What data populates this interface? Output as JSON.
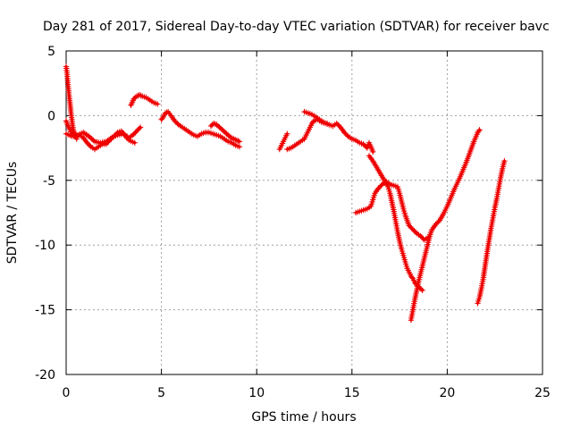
{
  "chart_data": {
    "type": "scatter",
    "title": "Day 281 of 2017, Sidereal Day-to-day VTEC variation (SDTVAR) for receiver bavc",
    "xlabel": "GPS time / hours",
    "ylabel": "SDTVAR / TECUs",
    "xlim": [
      0,
      25
    ],
    "ylim": [
      -20,
      5
    ],
    "xticks": [
      "0",
      "5",
      "10",
      "15",
      "20",
      "25"
    ],
    "yticks": [
      "5",
      "0",
      "-5",
      "-10",
      "-15",
      "-20"
    ],
    "grid": true,
    "color": "#ee0000",
    "marker": "plus",
    "series": [
      {
        "name": "s1",
        "points": [
          [
            0.0,
            3.8
          ],
          [
            0.05,
            3.2
          ],
          [
            0.1,
            2.4
          ],
          [
            0.15,
            1.6
          ],
          [
            0.2,
            1.0
          ],
          [
            0.25,
            0.3
          ],
          [
            0.3,
            -0.3
          ],
          [
            0.35,
            -0.9
          ],
          [
            0.4,
            -1.3
          ],
          [
            0.45,
            -1.6
          ],
          [
            0.5,
            -1.4
          ],
          [
            0.55,
            -1.8
          ]
        ]
      },
      {
        "name": "s2",
        "points": [
          [
            0.0,
            -0.4
          ],
          [
            0.1,
            -0.8
          ],
          [
            0.2,
            -1.1
          ],
          [
            0.3,
            -1.4
          ],
          [
            0.5,
            -1.6
          ],
          [
            0.7,
            -1.5
          ],
          [
            0.9,
            -1.7
          ],
          [
            1.1,
            -2.1
          ],
          [
            1.3,
            -2.4
          ],
          [
            1.5,
            -2.6
          ],
          [
            1.7,
            -2.4
          ],
          [
            1.9,
            -2.2
          ],
          [
            2.1,
            -2.2
          ],
          [
            2.3,
            -1.9
          ],
          [
            2.5,
            -1.6
          ],
          [
            2.7,
            -1.3
          ],
          [
            2.9,
            -1.2
          ],
          [
            3.1,
            -1.5
          ],
          [
            3.3,
            -1.7
          ],
          [
            3.5,
            -1.5
          ],
          [
            3.7,
            -1.2
          ],
          [
            3.9,
            -0.9
          ]
        ]
      },
      {
        "name": "s3",
        "points": [
          [
            0.0,
            -1.4
          ],
          [
            0.3,
            -1.6
          ],
          [
            0.6,
            -1.5
          ],
          [
            0.9,
            -1.3
          ],
          [
            1.2,
            -1.6
          ],
          [
            1.5,
            -2.0
          ],
          [
            1.8,
            -2.1
          ],
          [
            2.1,
            -2.0
          ],
          [
            2.4,
            -1.7
          ],
          [
            2.7,
            -1.5
          ],
          [
            3.0,
            -1.4
          ],
          [
            3.3,
            -1.9
          ],
          [
            3.6,
            -2.1
          ]
        ]
      },
      {
        "name": "s4",
        "points": [
          [
            3.4,
            0.8
          ],
          [
            3.55,
            1.3
          ],
          [
            3.7,
            1.5
          ],
          [
            3.85,
            1.6
          ],
          [
            4.0,
            1.5
          ],
          [
            4.2,
            1.4
          ],
          [
            4.4,
            1.2
          ],
          [
            4.6,
            1.0
          ],
          [
            4.8,
            0.9
          ]
        ]
      },
      {
        "name": "s5",
        "points": [
          [
            5.0,
            -0.3
          ],
          [
            5.1,
            -0.1
          ],
          [
            5.2,
            0.2
          ],
          [
            5.35,
            0.3
          ],
          [
            5.5,
            0.0
          ],
          [
            5.7,
            -0.4
          ],
          [
            5.9,
            -0.7
          ],
          [
            6.1,
            -0.9
          ],
          [
            6.3,
            -1.1
          ],
          [
            6.5,
            -1.3
          ],
          [
            6.7,
            -1.5
          ],
          [
            6.9,
            -1.6
          ],
          [
            7.1,
            -1.4
          ],
          [
            7.3,
            -1.3
          ],
          [
            7.5,
            -1.3
          ],
          [
            7.7,
            -1.4
          ],
          [
            7.9,
            -1.5
          ],
          [
            8.1,
            -1.6
          ],
          [
            8.3,
            -1.8
          ],
          [
            8.5,
            -2.0
          ],
          [
            8.7,
            -2.1
          ],
          [
            8.9,
            -2.3
          ],
          [
            9.1,
            -2.4
          ]
        ]
      },
      {
        "name": "s6",
        "points": [
          [
            7.6,
            -0.8
          ],
          [
            7.75,
            -0.6
          ],
          [
            7.9,
            -0.7
          ],
          [
            8.05,
            -0.9
          ],
          [
            8.2,
            -1.1
          ],
          [
            8.35,
            -1.3
          ],
          [
            8.5,
            -1.5
          ],
          [
            8.65,
            -1.7
          ],
          [
            8.8,
            -1.8
          ],
          [
            8.95,
            -1.9
          ],
          [
            9.1,
            -2.0
          ]
        ]
      },
      {
        "name": "s7",
        "points": [
          [
            11.2,
            -2.6
          ],
          [
            11.3,
            -2.3
          ],
          [
            11.4,
            -2.0
          ],
          [
            11.5,
            -1.7
          ],
          [
            11.6,
            -1.4
          ]
        ]
      },
      {
        "name": "s8",
        "points": [
          [
            11.6,
            -2.6
          ],
          [
            11.8,
            -2.5
          ],
          [
            12.0,
            -2.3
          ],
          [
            12.2,
            -2.1
          ],
          [
            12.4,
            -1.9
          ],
          [
            12.5,
            -1.8
          ],
          [
            12.6,
            -1.5
          ],
          [
            12.7,
            -1.2
          ],
          [
            12.8,
            -0.9
          ],
          [
            12.9,
            -0.6
          ],
          [
            13.0,
            -0.4
          ],
          [
            13.2,
            -0.3
          ],
          [
            13.4,
            -0.5
          ],
          [
            13.6,
            -0.6
          ],
          [
            13.8,
            -0.7
          ],
          [
            14.0,
            -0.8
          ],
          [
            14.2,
            -0.6
          ],
          [
            14.4,
            -0.9
          ],
          [
            14.6,
            -1.3
          ],
          [
            14.8,
            -1.6
          ],
          [
            15.0,
            -1.8
          ],
          [
            15.2,
            -1.9
          ],
          [
            15.4,
            -2.1
          ],
          [
            15.6,
            -2.2
          ],
          [
            15.8,
            -2.5
          ],
          [
            15.9,
            -2.1
          ],
          [
            16.0,
            -2.4
          ],
          [
            16.1,
            -2.8
          ]
        ]
      },
      {
        "name": "s9",
        "points": [
          [
            12.5,
            0.3
          ],
          [
            12.7,
            0.2
          ],
          [
            12.9,
            0.1
          ],
          [
            13.1,
            -0.1
          ],
          [
            13.3,
            -0.3
          ],
          [
            13.5,
            -0.5
          ],
          [
            13.7,
            -0.6
          ]
        ]
      },
      {
        "name": "s10",
        "points": [
          [
            15.9,
            -3.1
          ],
          [
            16.1,
            -3.5
          ],
          [
            16.3,
            -4.0
          ],
          [
            16.5,
            -4.5
          ],
          [
            16.7,
            -5.0
          ],
          [
            16.9,
            -5.5
          ],
          [
            17.0,
            -6.0
          ],
          [
            17.1,
            -6.7
          ],
          [
            17.2,
            -7.4
          ],
          [
            17.3,
            -8.2
          ],
          [
            17.4,
            -9.0
          ],
          [
            17.5,
            -9.7
          ],
          [
            17.6,
            -10.3
          ],
          [
            17.7,
            -10.8
          ],
          [
            17.8,
            -11.3
          ],
          [
            17.9,
            -11.8
          ],
          [
            18.0,
            -12.1
          ],
          [
            18.1,
            -12.4
          ],
          [
            18.2,
            -12.6
          ],
          [
            18.3,
            -12.9
          ],
          [
            18.4,
            -13.1
          ],
          [
            18.55,
            -13.3
          ],
          [
            18.7,
            -13.5
          ]
        ]
      },
      {
        "name": "s11",
        "points": [
          [
            15.2,
            -7.5
          ],
          [
            15.4,
            -7.4
          ],
          [
            15.6,
            -7.3
          ],
          [
            15.8,
            -7.2
          ],
          [
            16.0,
            -7.0
          ],
          [
            16.1,
            -6.5
          ],
          [
            16.2,
            -6.0
          ],
          [
            16.4,
            -5.6
          ],
          [
            16.6,
            -5.3
          ],
          [
            16.8,
            -5.1
          ],
          [
            17.0,
            -5.3
          ],
          [
            17.2,
            -5.4
          ],
          [
            17.4,
            -5.5
          ],
          [
            17.5,
            -6.0
          ],
          [
            17.6,
            -6.6
          ],
          [
            17.7,
            -7.2
          ],
          [
            17.8,
            -7.7
          ],
          [
            17.9,
            -8.1
          ],
          [
            18.0,
            -8.5
          ],
          [
            18.2,
            -8.8
          ],
          [
            18.4,
            -9.1
          ],
          [
            18.6,
            -9.3
          ],
          [
            18.8,
            -9.6
          ],
          [
            19.0,
            -9.4
          ]
        ]
      },
      {
        "name": "s12",
        "points": [
          [
            18.1,
            -15.8
          ],
          [
            18.2,
            -15.0
          ],
          [
            18.3,
            -14.2
          ],
          [
            18.4,
            -13.5
          ],
          [
            18.5,
            -12.8
          ],
          [
            18.6,
            -12.2
          ],
          [
            18.7,
            -11.6
          ],
          [
            18.8,
            -11.0
          ],
          [
            18.9,
            -10.4
          ],
          [
            19.0,
            -9.8
          ],
          [
            19.1,
            -9.2
          ],
          [
            19.2,
            -8.8
          ],
          [
            19.4,
            -8.4
          ],
          [
            19.6,
            -8.1
          ],
          [
            19.8,
            -7.6
          ],
          [
            20.0,
            -7.0
          ],
          [
            20.2,
            -6.3
          ],
          [
            20.4,
            -5.6
          ],
          [
            20.6,
            -5.0
          ],
          [
            20.8,
            -4.3
          ],
          [
            21.0,
            -3.6
          ],
          [
            21.2,
            -2.8
          ],
          [
            21.4,
            -2.0
          ],
          [
            21.6,
            -1.3
          ],
          [
            21.7,
            -1.1
          ]
        ]
      },
      {
        "name": "s13",
        "points": [
          [
            21.6,
            -14.5
          ],
          [
            21.7,
            -14.0
          ],
          [
            21.8,
            -13.3
          ],
          [
            21.9,
            -12.5
          ],
          [
            22.0,
            -11.5
          ],
          [
            22.1,
            -10.5
          ],
          [
            22.2,
            -9.6
          ],
          [
            22.3,
            -8.7
          ],
          [
            22.4,
            -7.9
          ],
          [
            22.5,
            -7.1
          ],
          [
            22.6,
            -6.4
          ],
          [
            22.7,
            -5.6
          ],
          [
            22.8,
            -4.8
          ],
          [
            22.9,
            -4.1
          ],
          [
            23.0,
            -3.5
          ]
        ]
      }
    ]
  }
}
